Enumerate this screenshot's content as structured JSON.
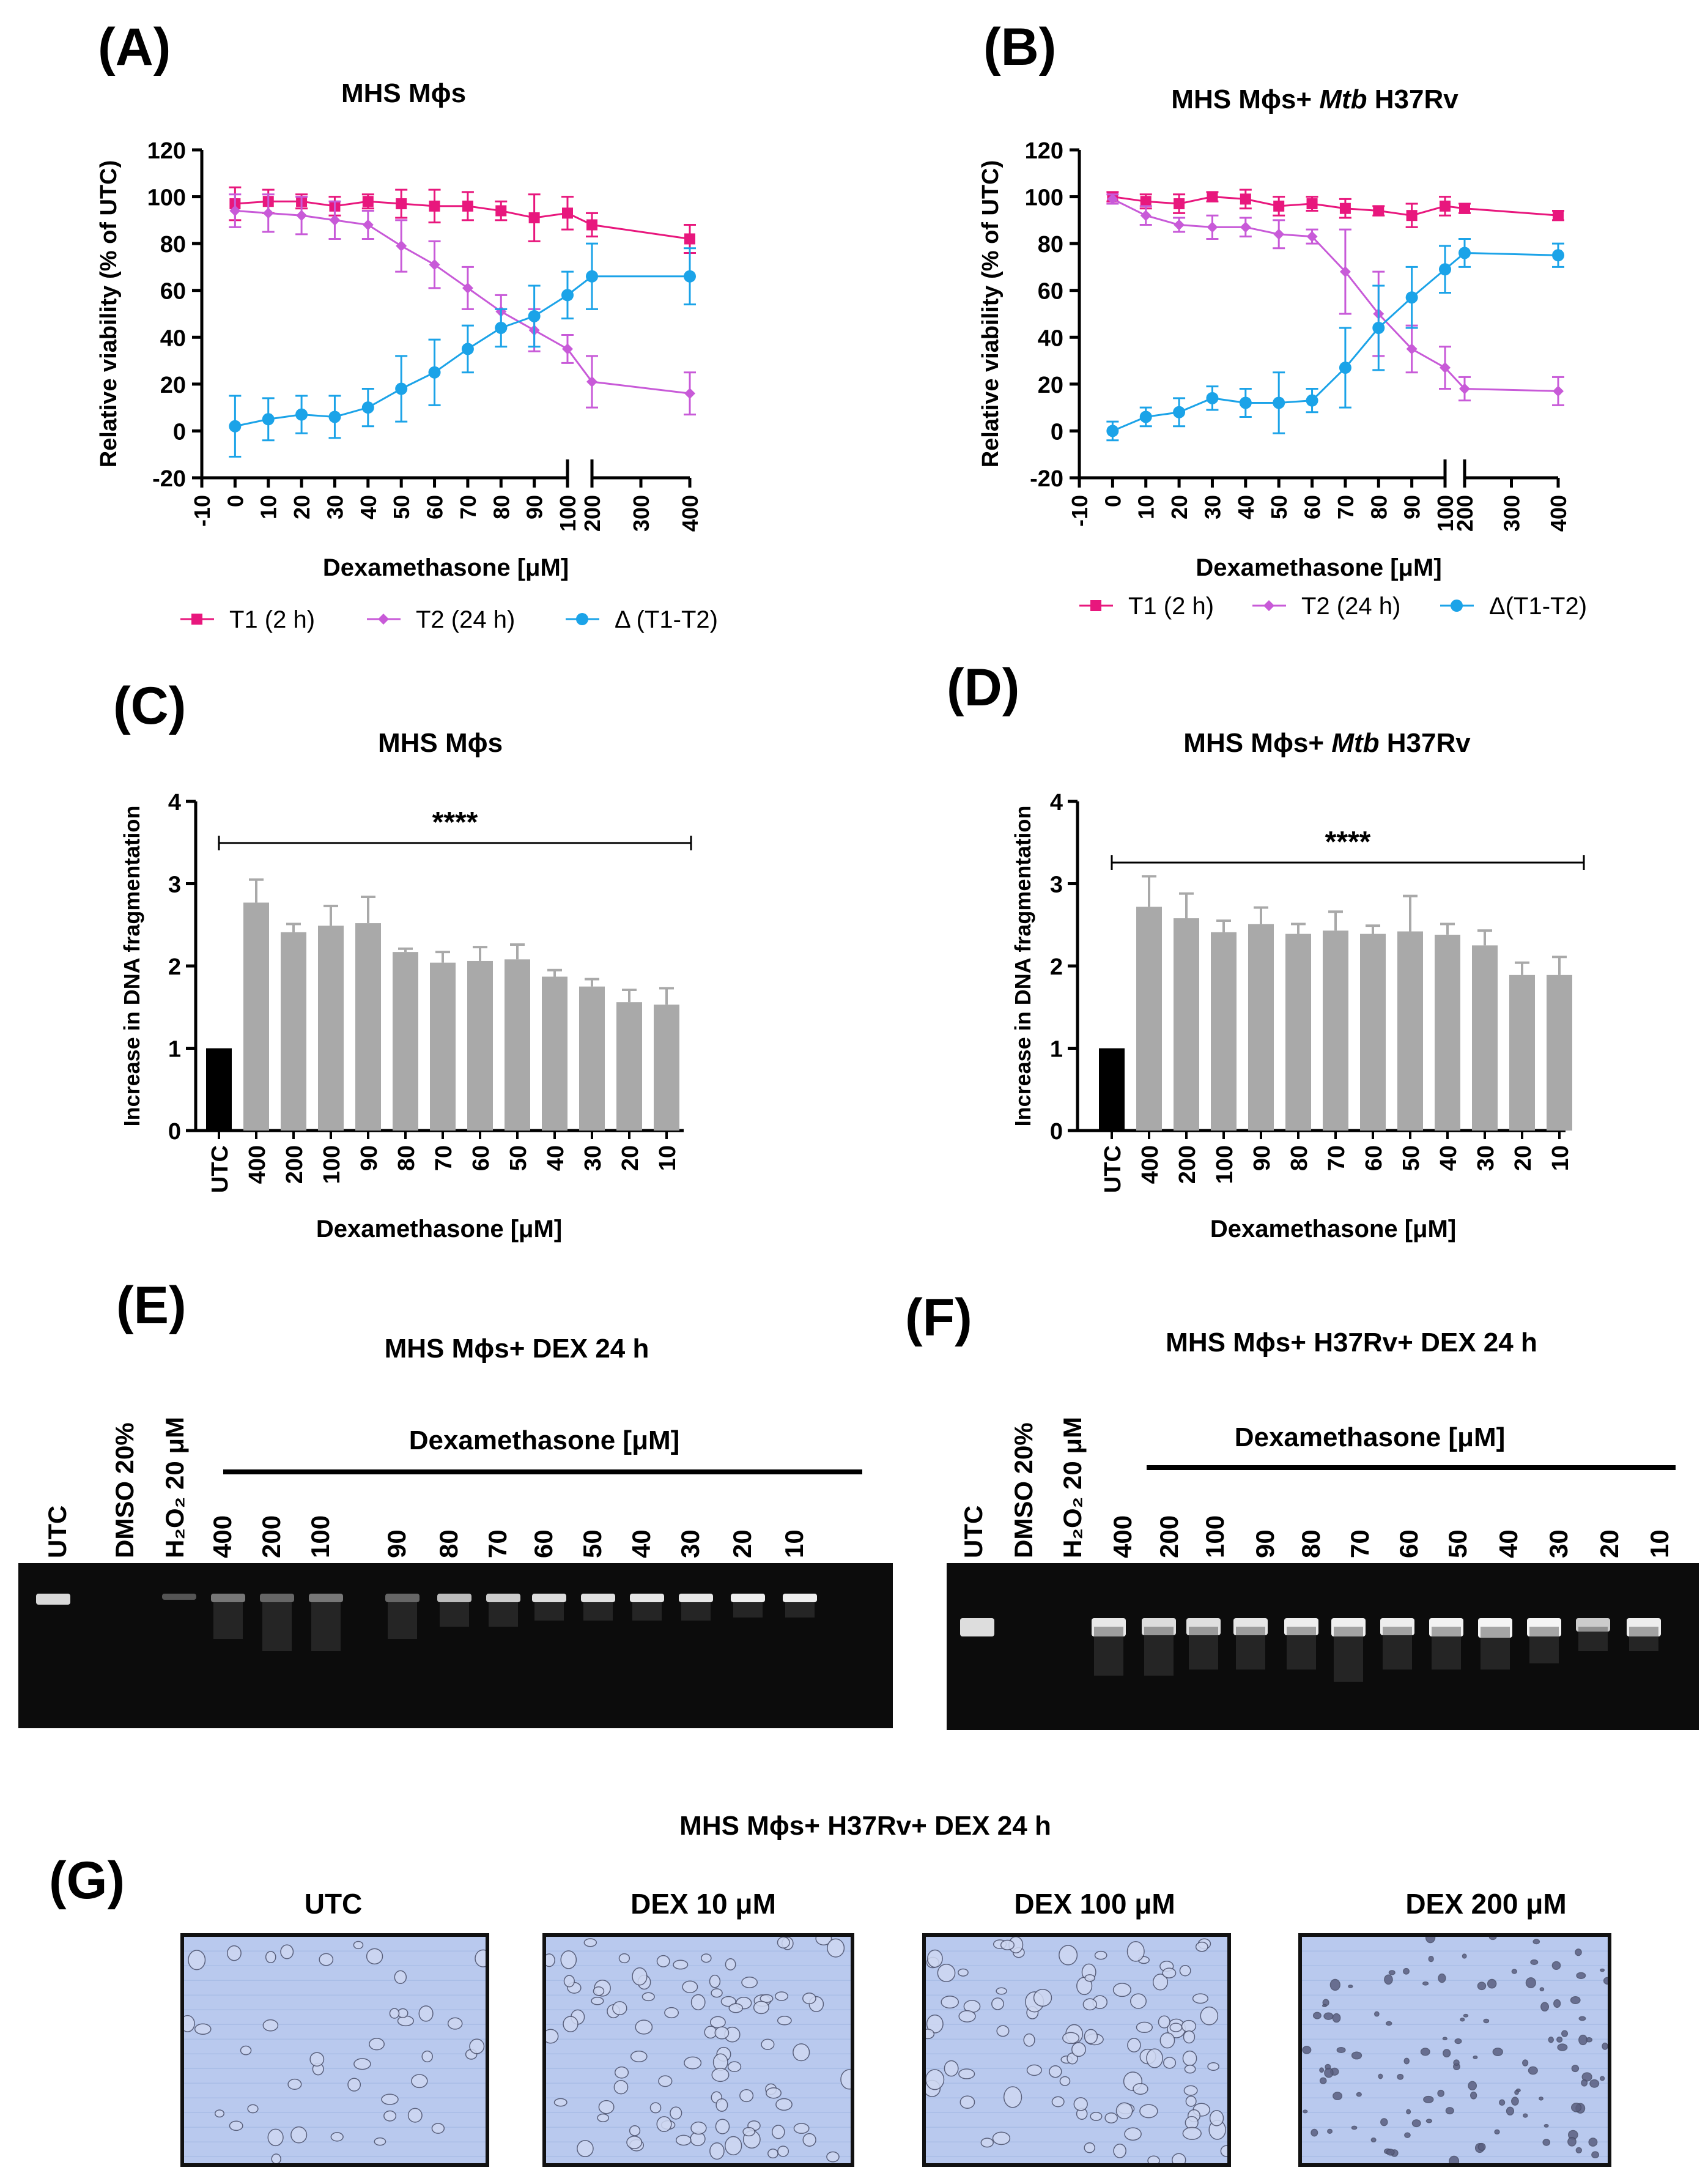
{
  "panels": {
    "A": {
      "label": "(A)",
      "title": "MHS Mϕs"
    },
    "B": {
      "label": "(B)",
      "title_prefix": "MHS Mϕs+ ",
      "title_italic": "Mtb",
      "title_suffix": " H37Rv"
    },
    "C": {
      "label": "(C)",
      "title": "MHS Mϕs"
    },
    "D": {
      "label": "(D)",
      "title_prefix": "MHS Mϕs+ ",
      "title_italic": "Mtb",
      "title_suffix": " H37Rv"
    },
    "E": {
      "label": "(E)",
      "title": "MHS Mϕs+ DEX 24 h"
    },
    "F": {
      "label": "(F)",
      "title": "MHS Mϕs+ H37Rv+ DEX 24 h"
    },
    "G": {
      "label": "(G)",
      "title": "MHS Mϕs+ H37Rv+ DEX 24 h"
    }
  },
  "chart_data": [
    {
      "id": "A",
      "type": "line",
      "title": "MHS Mϕs",
      "xlabel": "Dexamethasone  [μM]",
      "ylabel": "Relative viability (% of UTC)",
      "ylim": [
        -20,
        120
      ],
      "yticks": [
        "-20",
        "0",
        "20",
        "40",
        "60",
        "80",
        "100",
        "120"
      ],
      "xticks": [
        "-10",
        "0",
        "10",
        "20",
        "30",
        "40",
        "50",
        "60",
        "70",
        "80",
        "90",
        "100",
        "200",
        "300",
        "400"
      ],
      "x": [
        0,
        10,
        20,
        30,
        40,
        50,
        60,
        70,
        80,
        90,
        100,
        200,
        400
      ],
      "series": [
        {
          "name": "T1 (2 h)",
          "color": "#e8177d",
          "marker": "square",
          "values": [
            97,
            98,
            98,
            96,
            98,
            97,
            96,
            96,
            94,
            91,
            93,
            88,
            82
          ],
          "errors": [
            7,
            5,
            3,
            4,
            3,
            6,
            7,
            6,
            4,
            10,
            7,
            5,
            6
          ]
        },
        {
          "name": "T2  (24 h)",
          "color": "#c85ad8",
          "marker": "diamond",
          "values": [
            94,
            93,
            92,
            90,
            88,
            79,
            71,
            61,
            51,
            43,
            35,
            21,
            16
          ],
          "errors": [
            7,
            8,
            8,
            8,
            6,
            11,
            10,
            9,
            7,
            9,
            6,
            11,
            9
          ]
        },
        {
          "name": "Δ (T1-T2)",
          "color": "#1ba3e8",
          "marker": "circle",
          "values": [
            2,
            5,
            7,
            6,
            10,
            18,
            25,
            35,
            44,
            49,
            58,
            66,
            66
          ],
          "errors": [
            13,
            9,
            8,
            9,
            8,
            14,
            14,
            10,
            8,
            13,
            10,
            14,
            12
          ]
        }
      ]
    },
    {
      "id": "B",
      "type": "line",
      "title": "MHS Mϕs+ Mtb H37Rv",
      "xlabel": "Dexamethasone  [μM]",
      "ylabel": "Relative viability (% of UTC)",
      "ylim": [
        -20,
        120
      ],
      "yticks": [
        "-20",
        "0",
        "20",
        "40",
        "60",
        "80",
        "100",
        "120"
      ],
      "xticks": [
        "-10",
        "0",
        "10",
        "20",
        "30",
        "40",
        "50",
        "60",
        "70",
        "80",
        "90",
        "100",
        "200",
        "300",
        "400"
      ],
      "x": [
        0,
        10,
        20,
        30,
        40,
        50,
        60,
        70,
        80,
        90,
        100,
        200,
        400
      ],
      "series": [
        {
          "name": "T1 (2 h)",
          "color": "#e8177d",
          "marker": "square",
          "values": [
            100,
            98,
            97,
            100,
            99,
            96,
            97,
            95,
            94,
            92,
            96,
            95,
            92
          ],
          "errors": [
            2,
            3,
            4,
            2,
            4,
            4,
            3,
            4,
            2,
            5,
            4,
            2,
            2
          ]
        },
        {
          "name": "T2 (24 h)",
          "color": "#c85ad8",
          "marker": "diamond",
          "values": [
            99,
            92,
            88,
            87,
            87,
            84,
            83,
            68,
            50,
            35,
            27,
            18,
            17
          ],
          "errors": [
            2,
            4,
            3,
            5,
            4,
            6,
            3,
            18,
            18,
            10,
            9,
            5,
            6
          ]
        },
        {
          "name": "Δ(T1-T2)",
          "color": "#1ba3e8",
          "marker": "circle",
          "values": [
            0,
            6,
            8,
            14,
            12,
            12,
            13,
            27,
            44,
            57,
            69,
            76,
            75
          ],
          "errors": [
            4,
            4,
            6,
            5,
            6,
            13,
            5,
            17,
            18,
            13,
            10,
            6,
            5
          ]
        }
      ]
    },
    {
      "id": "C",
      "type": "bar",
      "title": "MHS Mϕs",
      "xlabel": "Dexamethasone  [μM]",
      "ylabel": "Increase in DNA fragmentation",
      "ylim": [
        0,
        4
      ],
      "yticks": [
        "0",
        "1",
        "2",
        "3",
        "4"
      ],
      "categories": [
        "UTC",
        "400",
        "200",
        "100",
        "90",
        "80",
        "70",
        "60",
        "50",
        "40",
        "30",
        "20",
        "10"
      ],
      "values": [
        1.0,
        2.77,
        2.41,
        2.49,
        2.52,
        2.17,
        2.04,
        2.06,
        2.08,
        1.87,
        1.75,
        1.56,
        1.53
      ],
      "errors": [
        0,
        0.28,
        0.1,
        0.24,
        0.32,
        0.04,
        0.13,
        0.17,
        0.18,
        0.08,
        0.09,
        0.15,
        0.2
      ],
      "significance": "****"
    },
    {
      "id": "D",
      "type": "bar",
      "title": "MHS Mϕs+ Mtb H37Rv",
      "xlabel": "Dexamethasone  [μM]",
      "ylabel": "Increase in DNA fragmentation",
      "ylim": [
        0,
        4
      ],
      "yticks": [
        "0",
        "1",
        "2",
        "3",
        "4"
      ],
      "categories": [
        "UTC",
        "400",
        "200",
        "100",
        "90",
        "80",
        "70",
        "60",
        "50",
        "40",
        "30",
        "20",
        "10"
      ],
      "values": [
        1.0,
        2.72,
        2.58,
        2.41,
        2.51,
        2.39,
        2.43,
        2.39,
        2.42,
        2.38,
        2.25,
        1.89,
        1.89
      ],
      "errors": [
        0,
        0.37,
        0.3,
        0.14,
        0.2,
        0.12,
        0.23,
        0.1,
        0.43,
        0.13,
        0.18,
        0.15,
        0.22
      ],
      "significance": "****"
    }
  ],
  "gel_E": {
    "group_label": "Dexamethasone [μM]",
    "lanes": [
      "UTC",
      "DMSO 20%",
      "H₂O₂ 20 μM",
      "400",
      "200",
      "100",
      "90",
      "80",
      "70",
      "60",
      "50",
      "40",
      "30",
      "20",
      "10"
    ]
  },
  "gel_F": {
    "group_label": "Dexamethasone [μM]",
    "lanes": [
      "UTC",
      "DMSO 20%",
      "H₂O₂ 20 μM",
      "400",
      "200",
      "100",
      "90",
      "80",
      "70",
      "60",
      "50",
      "40",
      "30",
      "20",
      "10"
    ]
  },
  "micrographs": [
    {
      "label": "UTC"
    },
    {
      "label": "DEX 10 μM"
    },
    {
      "label": "DEX 100 μM"
    },
    {
      "label": "DEX 200 μM"
    }
  ]
}
